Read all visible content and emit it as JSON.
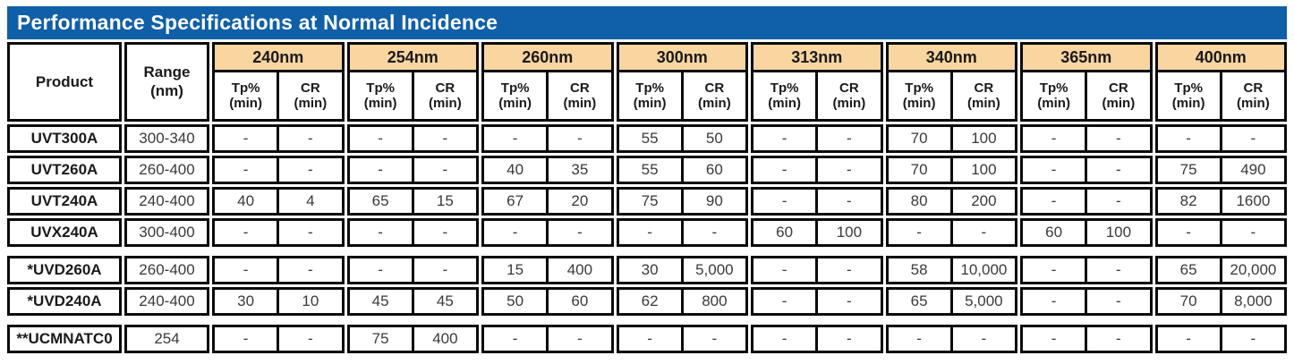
{
  "title": "Performance Specifications at Normal Incidence",
  "colors": {
    "title_bar_bg": "#0f5fa9",
    "title_text": "#ffffff",
    "wavelength_header_bg": "#f9d5a0",
    "border": "#0a0a0a",
    "value_text": "#3a3a3a"
  },
  "table": {
    "product_header": "Product",
    "range_header": "Range\n(nm)",
    "wavelengths": [
      "240nm",
      "254nm",
      "260nm",
      "300nm",
      "313nm",
      "340nm",
      "365nm",
      "400nm"
    ],
    "sub_headers": [
      "Tp%\n(min)",
      "CR\n(min)"
    ],
    "sections": [
      {
        "rows": [
          {
            "product": "UVT300A",
            "range": "300-340",
            "values": [
              "-",
              "-",
              "-",
              "-",
              "-",
              "-",
              "55",
              "50",
              "-",
              "-",
              "70",
              "100",
              "-",
              "-",
              "-",
              "-"
            ]
          },
          {
            "product": "UVT260A",
            "range": "260-400",
            "values": [
              "-",
              "-",
              "-",
              "-",
              "40",
              "35",
              "55",
              "60",
              "-",
              "-",
              "70",
              "100",
              "-",
              "-",
              "75",
              "490"
            ]
          },
          {
            "product": "UVT240A",
            "range": "240-400",
            "values": [
              "40",
              "4",
              "65",
              "15",
              "67",
              "20",
              "75",
              "90",
              "-",
              "-",
              "80",
              "200",
              "-",
              "-",
              "82",
              "1600"
            ]
          },
          {
            "product": "UVX240A",
            "range": "300-400",
            "values": [
              "-",
              "-",
              "-",
              "-",
              "-",
              "-",
              "-",
              "-",
              "60",
              "100",
              "-",
              "-",
              "60",
              "100",
              "-",
              "-"
            ]
          }
        ]
      },
      {
        "rows": [
          {
            "product": "*UVD260A",
            "range": "260-400",
            "values": [
              "-",
              "-",
              "-",
              "-",
              "15",
              "400",
              "30",
              "5,000",
              "-",
              "-",
              "58",
              "10,000",
              "-",
              "-",
              "65",
              "20,000"
            ]
          },
          {
            "product": "*UVD240A",
            "range": "240-400",
            "values": [
              "30",
              "10",
              "45",
              "45",
              "50",
              "60",
              "62",
              "800",
              "-",
              "-",
              "65",
              "5,000",
              "-",
              "-",
              "70",
              "8,000"
            ]
          }
        ]
      },
      {
        "rows": [
          {
            "product": "**UCMNATC0",
            "range": "254",
            "values": [
              "-",
              "-",
              "75",
              "400",
              "-",
              "-",
              "-",
              "-",
              "-",
              "-",
              "-",
              "-",
              "-",
              "-",
              "-",
              "-"
            ]
          }
        ]
      }
    ]
  },
  "chart_data": {
    "type": "table",
    "title": "Performance Specifications at Normal Incidence",
    "column_groups": [
      "240nm",
      "254nm",
      "260nm",
      "300nm",
      "313nm",
      "340nm",
      "365nm",
      "400nm"
    ],
    "sub_columns_per_group": [
      "Tp% (min)",
      "CR (min)"
    ],
    "row_headers": [
      "Product",
      "Range (nm)"
    ],
    "rows": [
      [
        "UVT300A",
        "300-340",
        "-",
        "-",
        "-",
        "-",
        "-",
        "-",
        "55",
        "50",
        "-",
        "-",
        "70",
        "100",
        "-",
        "-",
        "-",
        "-"
      ],
      [
        "UVT260A",
        "260-400",
        "-",
        "-",
        "-",
        "-",
        "40",
        "35",
        "55",
        "60",
        "-",
        "-",
        "70",
        "100",
        "-",
        "-",
        "75",
        "490"
      ],
      [
        "UVT240A",
        "240-400",
        "40",
        "4",
        "65",
        "15",
        "67",
        "20",
        "75",
        "90",
        "-",
        "-",
        "80",
        "200",
        "-",
        "-",
        "82",
        "1600"
      ],
      [
        "UVX240A",
        "300-400",
        "-",
        "-",
        "-",
        "-",
        "-",
        "-",
        "-",
        "-",
        "60",
        "100",
        "-",
        "-",
        "60",
        "100",
        "-",
        "-"
      ],
      [
        "*UVD260A",
        "260-400",
        "-",
        "-",
        "-",
        "-",
        "15",
        "400",
        "30",
        "5,000",
        "-",
        "-",
        "58",
        "10,000",
        "-",
        "-",
        "65",
        "20,000"
      ],
      [
        "*UVD240A",
        "240-400",
        "30",
        "10",
        "45",
        "45",
        "50",
        "60",
        "62",
        "800",
        "-",
        "-",
        "65",
        "5,000",
        "-",
        "-",
        "70",
        "8,000"
      ],
      [
        "**UCMNATC0",
        "254",
        "-",
        "-",
        "75",
        "400",
        "-",
        "-",
        "-",
        "-",
        "-",
        "-",
        "-",
        "-",
        "-",
        "-",
        "-",
        "-"
      ]
    ]
  }
}
